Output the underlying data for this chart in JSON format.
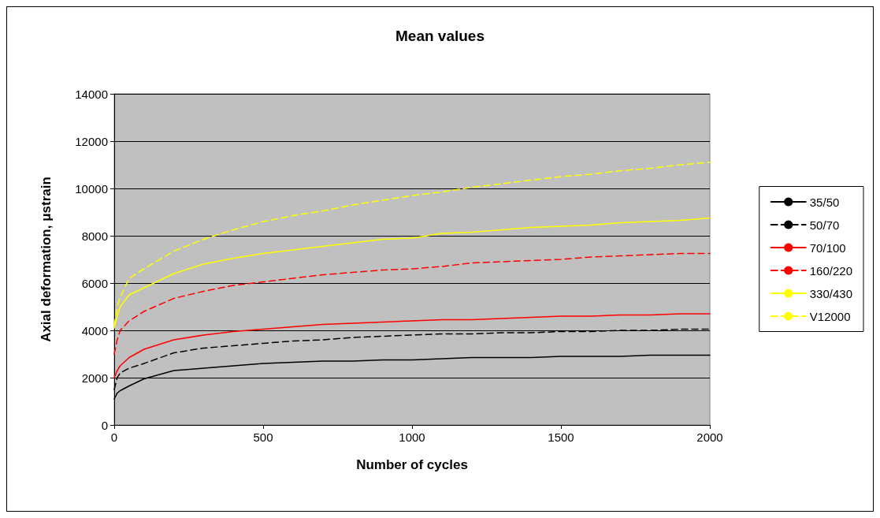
{
  "chart_data": {
    "type": "line",
    "title": "Mean values",
    "xlabel": "Number of cycles",
    "ylabel": "Axial deformation, μstrain",
    "x": [
      0,
      10,
      20,
      50,
      100,
      200,
      300,
      400,
      500,
      600,
      700,
      800,
      900,
      1000,
      1100,
      1200,
      1300,
      1400,
      1500,
      1600,
      1700,
      1800,
      1900,
      2000
    ],
    "series": [
      {
        "name": "35/50",
        "color": "#000000",
        "line_style": "solid",
        "values": [
          1100,
          1350,
          1450,
          1650,
          1950,
          2300,
          2400,
          2500,
          2600,
          2650,
          2700,
          2700,
          2750,
          2750,
          2800,
          2850,
          2850,
          2850,
          2900,
          2900,
          2900,
          2950,
          2950,
          2950
        ]
      },
      {
        "name": "50/70",
        "color": "#000000",
        "line_style": "dashed",
        "values": [
          1500,
          2000,
          2200,
          2400,
          2600,
          3050,
          3250,
          3350,
          3450,
          3550,
          3600,
          3700,
          3750,
          3800,
          3850,
          3850,
          3900,
          3900,
          3950,
          3950,
          4000,
          4000,
          4050,
          4050
        ]
      },
      {
        "name": "70/100",
        "color": "#ff0000",
        "line_style": "solid",
        "values": [
          2000,
          2300,
          2500,
          2850,
          3200,
          3600,
          3800,
          3950,
          4050,
          4150,
          4250,
          4300,
          4350,
          4400,
          4450,
          4450,
          4500,
          4550,
          4600,
          4600,
          4650,
          4650,
          4700,
          4700
        ]
      },
      {
        "name": "160/220",
        "color": "#ff0000",
        "line_style": "dashed",
        "values": [
          3000,
          3600,
          4000,
          4400,
          4800,
          5350,
          5650,
          5900,
          6050,
          6200,
          6350,
          6450,
          6550,
          6600,
          6700,
          6850,
          6900,
          6950,
          7000,
          7100,
          7150,
          7200,
          7250,
          7250
        ]
      },
      {
        "name": "330/430",
        "color": "#ffff00",
        "line_style": "solid",
        "values": [
          4100,
          4600,
          5000,
          5500,
          5800,
          6400,
          6800,
          7050,
          7250,
          7400,
          7550,
          7700,
          7850,
          7900,
          8100,
          8150,
          8250,
          8350,
          8400,
          8450,
          8550,
          8600,
          8650,
          8750
        ]
      },
      {
        "name": "V12000",
        "color": "#ffff00",
        "line_style": "dashed",
        "values": [
          4200,
          5000,
          5400,
          6200,
          6600,
          7350,
          7850,
          8250,
          8600,
          8850,
          9050,
          9300,
          9500,
          9700,
          9850,
          10050,
          10200,
          10350,
          10500,
          10600,
          10750,
          10850,
          11000,
          11100
        ]
      }
    ],
    "xlim": [
      0,
      2000
    ],
    "xticks": [
      0,
      500,
      1000,
      1500,
      2000
    ],
    "ylim": [
      0,
      14000
    ],
    "yticks": [
      0,
      2000,
      4000,
      6000,
      8000,
      10000,
      12000,
      14000
    ],
    "grid": "y",
    "legend": "right",
    "marker": "none"
  }
}
